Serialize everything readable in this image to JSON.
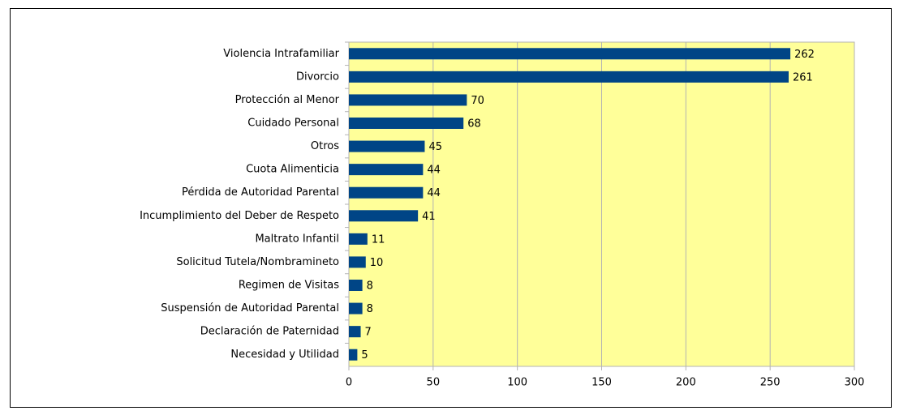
{
  "chart_data": {
    "type": "bar",
    "orientation": "horizontal",
    "categories": [
      "Violencia Intrafamiliar",
      "Divorcio",
      "Protección al Menor",
      "Cuidado Personal",
      "Otros",
      "Cuota Alimenticia",
      "Pérdida de Autoridad Parental",
      "Incumplimiento del Deber de Respeto",
      "Maltrato Infantil",
      "Solicitud Tutela/Nombramineto",
      "Regimen de Visitas",
      "Suspensión de Autoridad Parental",
      "Declaración de Paternidad",
      "Necesidad y Utilidad"
    ],
    "values": [
      262,
      261,
      70,
      68,
      45,
      44,
      44,
      41,
      11,
      10,
      8,
      8,
      7,
      5
    ],
    "color": "#004586",
    "background": "#ffff99",
    "xlim": [
      0,
      300
    ],
    "xticks": [
      0,
      50,
      100,
      150,
      200,
      250,
      300
    ],
    "grid": true
  }
}
